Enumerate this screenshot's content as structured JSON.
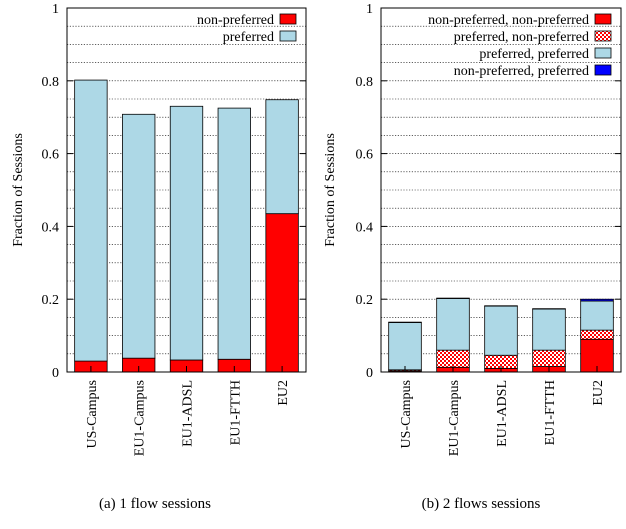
{
  "chart_data": [
    {
      "type": "bar",
      "stacked": true,
      "caption": "(a) 1 flow sessions",
      "title": "",
      "xlabel": "",
      "ylabel": "Fraction of Sessions",
      "ylim": [
        0,
        1
      ],
      "yticks": [
        "0",
        "0.2",
        "0.4",
        "0.6",
        "0.8",
        "1"
      ],
      "grid": true,
      "legend_position": "top-right",
      "categories": [
        "US-Campus",
        "EU1-Campus",
        "EU1-ADSL",
        "EU1-FTTH",
        "EU2"
      ],
      "series": [
        {
          "name": "non-preferred",
          "color": "#ff0000",
          "pattern": "solid",
          "values": [
            0.03,
            0.038,
            0.033,
            0.035,
            0.435
          ]
        },
        {
          "name": "preferred",
          "color": "#add8e6",
          "pattern": "solid",
          "values": [
            0.772,
            0.67,
            0.697,
            0.69,
            0.313
          ]
        }
      ],
      "legend_order": [
        "non-preferred",
        "preferred"
      ]
    },
    {
      "type": "bar",
      "stacked": true,
      "caption": "(b) 2 flows sessions",
      "title": "",
      "xlabel": "",
      "ylabel": "Fraction of Sessions",
      "ylim": [
        0,
        1
      ],
      "yticks": [
        "0",
        "0.2",
        "0.4",
        "0.6",
        "0.8",
        "1"
      ],
      "grid": true,
      "legend_position": "top-right",
      "categories": [
        "US-Campus",
        "EU1-Campus",
        "EU1-ADSL",
        "EU1-FTTH",
        "EU2"
      ],
      "series": [
        {
          "name": "non-preferred, non-preferred",
          "color": "#ff0000",
          "pattern": "solid",
          "values": [
            0.003,
            0.013,
            0.01,
            0.015,
            0.09
          ]
        },
        {
          "name": "preferred, non-preferred",
          "color": "#ff0000",
          "pattern": "checker",
          "values": [
            0.003,
            0.047,
            0.036,
            0.045,
            0.025
          ]
        },
        {
          "name": "preferred, preferred",
          "color": "#add8e6",
          "pattern": "solid",
          "values": [
            0.13,
            0.142,
            0.135,
            0.113,
            0.08
          ]
        },
        {
          "name": "non-preferred, preferred",
          "color": "#0000ff",
          "pattern": "solid",
          "values": [
            0.001,
            0.001,
            0.001,
            0.001,
            0.005
          ]
        }
      ],
      "legend_order": [
        "non-preferred, non-preferred",
        "preferred, non-preferred",
        "preferred, preferred",
        "non-preferred, preferred"
      ]
    }
  ]
}
